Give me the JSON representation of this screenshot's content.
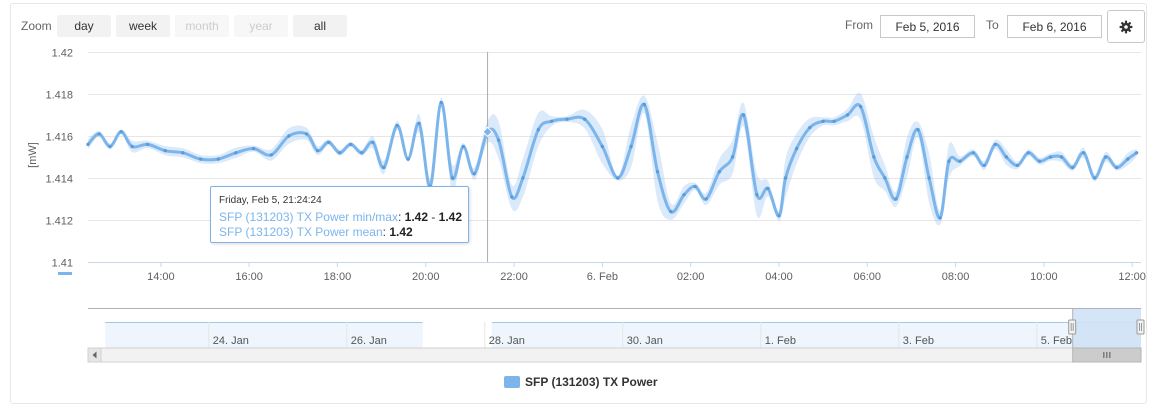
{
  "toolbar": {
    "zoom_label": "Zoom",
    "zoom_buttons": [
      {
        "label": "day",
        "enabled": true
      },
      {
        "label": "week",
        "enabled": true
      },
      {
        "label": "month",
        "enabled": false
      },
      {
        "label": "year",
        "enabled": false
      },
      {
        "label": "all",
        "enabled": true
      }
    ],
    "from_label": "From",
    "from_value": "Feb 5, 2016",
    "to_label": "To",
    "to_value": "Feb 6, 2016",
    "settings_icon": "gear-icon"
  },
  "tooltip": {
    "date": "Friday, Feb 5, 21:24:24",
    "rows": [
      {
        "name": "SFP (131203) TX Power min/max",
        "value": "1.42",
        "sep": " - ",
        "value2": "1.42"
      },
      {
        "name": "SFP (131203) TX Power mean",
        "value": "1.42"
      }
    ],
    "hover_time": 21.4,
    "hover_value": 1.4162
  },
  "legend": {
    "label": "SFP (131203) TX Power",
    "color": "#7cb5ec"
  },
  "navigator": {
    "labels": [
      {
        "text": "24. Jan",
        "day": 24
      },
      {
        "text": "26. Jan",
        "day": 26
      },
      {
        "text": "28. Jan",
        "day": 28
      },
      {
        "text": "30. Jan",
        "day": 30
      },
      {
        "text": "1. Feb",
        "day": 32
      },
      {
        "text": "3. Feb",
        "day": 34
      },
      {
        "text": "5. Feb",
        "day": 36
      }
    ],
    "gap_days": [
      27.1,
      28.1
    ],
    "window_days": [
      36.52,
      37.51
    ]
  },
  "chart_data": {
    "type": "line",
    "xlabel": "",
    "ylabel": "[mW]",
    "x_unit": "hours since Feb 5 00:00",
    "xlim": [
      12.35,
      36.2
    ],
    "ylim": [
      1.41,
      1.42
    ],
    "yticks": [
      {
        "value": 1.41,
        "label": "1.41"
      },
      {
        "value": 1.412,
        "label": "1.412"
      },
      {
        "value": 1.414,
        "label": "1.414"
      },
      {
        "value": 1.416,
        "label": "1.416"
      },
      {
        "value": 1.418,
        "label": "1.418"
      },
      {
        "value": 1.42,
        "label": "1.42"
      }
    ],
    "xticks": [
      {
        "value": 14,
        "label": "14:00"
      },
      {
        "value": 16,
        "label": "16:00"
      },
      {
        "value": 18,
        "label": "18:00"
      },
      {
        "value": 20,
        "label": "20:00"
      },
      {
        "value": 22,
        "label": "22:00"
      },
      {
        "value": 24,
        "label": "6. Feb"
      },
      {
        "value": 26,
        "label": "02:00"
      },
      {
        "value": 28,
        "label": "04:00"
      },
      {
        "value": 30,
        "label": "06:00"
      },
      {
        "value": 32,
        "label": "08:00"
      },
      {
        "value": 34,
        "label": "10:00"
      },
      {
        "value": 36,
        "label": "12:00"
      }
    ],
    "grid": true,
    "legend_position": "bottom-center",
    "series": [
      {
        "name": "SFP (131203) TX Power mean",
        "color": "#7cb5ec",
        "x": [
          12.35,
          12.6,
          12.85,
          13.1,
          13.35,
          13.7,
          14.1,
          14.5,
          14.9,
          15.3,
          15.7,
          16.1,
          16.5,
          16.9,
          17.3,
          17.55,
          17.8,
          18.05,
          18.3,
          18.55,
          18.8,
          19.05,
          19.35,
          19.6,
          19.85,
          20.1,
          20.35,
          20.6,
          20.85,
          21.1,
          21.4,
          21.65,
          21.95,
          22.2,
          22.55,
          22.85,
          23.2,
          23.6,
          24.0,
          24.35,
          24.65,
          24.95,
          25.25,
          25.55,
          25.85,
          26.1,
          26.35,
          26.65,
          26.95,
          27.2,
          27.5,
          27.75,
          28.0,
          28.15,
          28.4,
          28.7,
          29.0,
          29.25,
          29.55,
          29.85,
          30.15,
          30.4,
          30.65,
          30.9,
          31.15,
          31.4,
          31.65,
          31.85,
          32.1,
          32.4,
          32.65,
          32.9,
          33.15,
          33.4,
          33.65,
          33.9,
          34.15,
          34.4,
          34.65,
          34.9,
          35.15,
          35.4,
          35.65,
          35.9,
          36.1
        ],
        "y": [
          1.4156,
          1.4161,
          1.4155,
          1.4162,
          1.4155,
          1.4156,
          1.4153,
          1.4152,
          1.4149,
          1.4149,
          1.4152,
          1.4154,
          1.4151,
          1.416,
          1.4161,
          1.4153,
          1.4157,
          1.4152,
          1.4156,
          1.4152,
          1.4157,
          1.4145,
          1.4165,
          1.4149,
          1.4166,
          1.4136,
          1.4176,
          1.414,
          1.4155,
          1.4142,
          1.4162,
          1.4158,
          1.4131,
          1.414,
          1.4163,
          1.4167,
          1.4168,
          1.4168,
          1.4155,
          1.414,
          1.4155,
          1.4175,
          1.4143,
          1.4124,
          1.4132,
          1.4136,
          1.413,
          1.4143,
          1.415,
          1.417,
          1.4132,
          1.4135,
          1.4122,
          1.414,
          1.4154,
          1.4164,
          1.4167,
          1.4167,
          1.417,
          1.4174,
          1.415,
          1.414,
          1.413,
          1.415,
          1.4163,
          1.414,
          1.4121,
          1.4148,
          1.4148,
          1.4152,
          1.4146,
          1.4156,
          1.415,
          1.4146,
          1.4152,
          1.4148,
          1.415,
          1.415,
          1.4145,
          1.4152,
          1.414,
          1.415,
          1.4145,
          1.4149,
          1.4152
        ]
      }
    ]
  }
}
